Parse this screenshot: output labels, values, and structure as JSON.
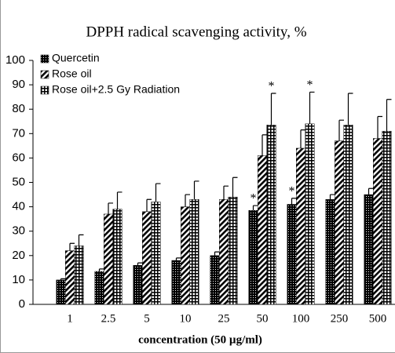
{
  "chart_data": {
    "type": "bar",
    "title": "DPPH radical scavenging activity, %",
    "x_label": "concentration  (50 µg/ml)",
    "categories": [
      "1",
      "2.5",
      "5",
      "10",
      "25",
      "50",
      "100",
      "250",
      "500"
    ],
    "series": [
      {
        "name": "Quercetin",
        "color": "#000000",
        "pattern": "dots",
        "values": [
          10,
          13.5,
          16,
          18,
          20,
          38.5,
          41,
          43,
          45
        ],
        "errors": [
          0.5,
          1,
          1,
          1,
          1.5,
          2,
          2.5,
          2,
          2.5
        ]
      },
      {
        "name": "Rose oil",
        "color": "#000000",
        "pattern": "diagonal",
        "values": [
          22,
          37,
          38,
          40,
          43,
          61,
          64,
          67,
          68
        ],
        "errors": [
          3,
          4.5,
          5,
          5,
          5.5,
          8.5,
          7.5,
          8.5,
          9
        ]
      },
      {
        "name": "Rose oil+2.5 Gy Radiation",
        "color": "#000000",
        "pattern": "grid",
        "values": [
          24,
          39,
          42,
          43,
          44,
          73.5,
          74,
          73.5,
          71
        ],
        "errors": [
          4.5,
          7,
          7.5,
          7.5,
          8,
          13,
          13,
          13,
          13
        ]
      }
    ],
    "annotations": [
      {
        "text": "*",
        "series": 0,
        "category": "50"
      },
      {
        "text": "*",
        "series": 0,
        "category": "100"
      },
      {
        "text": "*",
        "series": 2,
        "category": "50"
      },
      {
        "text": "*",
        "series": 2,
        "category": "100"
      }
    ],
    "ylim": [
      0,
      100
    ],
    "yticks": [
      0,
      10,
      20,
      30,
      40,
      50,
      60,
      70,
      80,
      90,
      100
    ],
    "legend": "top-left"
  }
}
